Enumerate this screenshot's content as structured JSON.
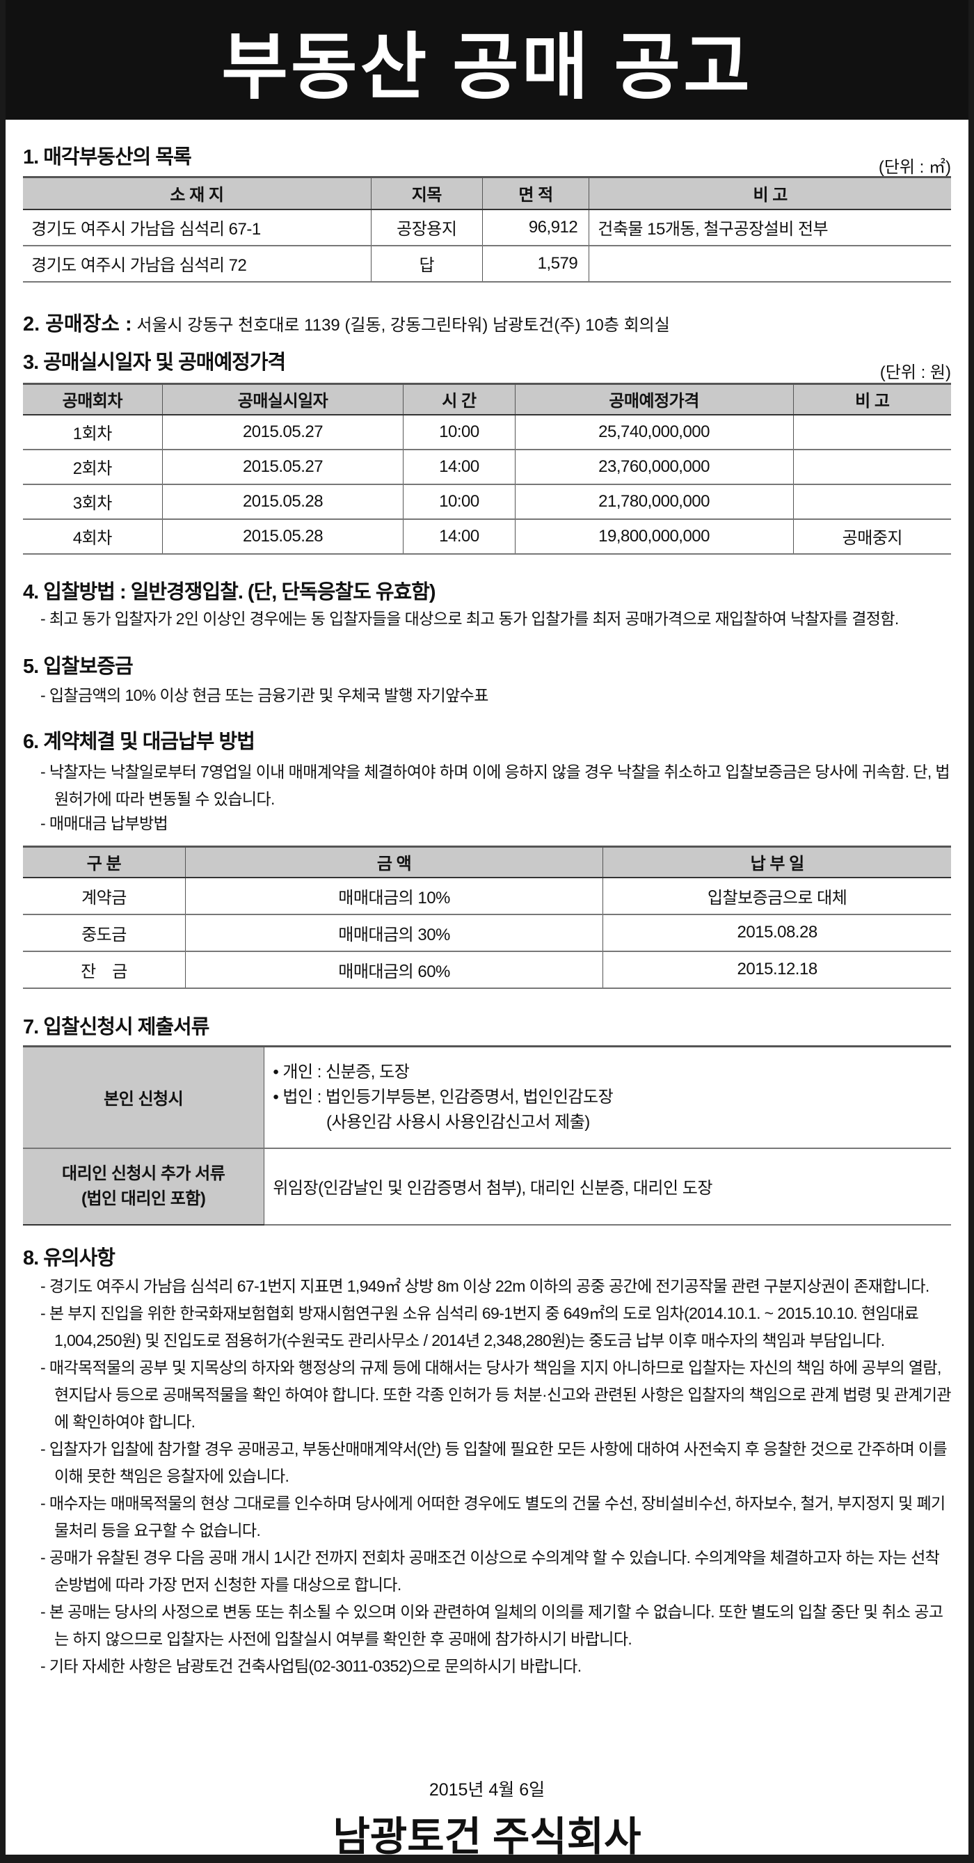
{
  "title": "부동산 공매 공고",
  "s1": {
    "heading": "1. 매각부동산의 목록",
    "unit": "(단위 : ㎡)",
    "headers": [
      "소 재 지",
      "지목",
      "면 적",
      "비 고"
    ],
    "rows": [
      [
        "경기도 여주시 가남읍 심석리 67-1",
        "공장용지",
        "96,912",
        "건축물 15개동, 철구공장설비 전부"
      ],
      [
        "경기도 여주시 가남읍 심석리 72",
        "답",
        "1,579",
        ""
      ]
    ]
  },
  "s2": {
    "label": "2. 공매장소 :",
    "value": "서울시 강동구 천호대로 1139 (길동, 강동그린타워) 남광토건(주) 10층 회의실"
  },
  "s3": {
    "heading": "3. 공매실시일자 및 공매예정가격",
    "unit": "(단위 : 원)",
    "headers": [
      "공매회차",
      "공매실시일자",
      "시 간",
      "공매예정가격",
      "비 고"
    ],
    "rows": [
      [
        "1회차",
        "2015.05.27",
        "10:00",
        "25,740,000,000",
        ""
      ],
      [
        "2회차",
        "2015.05.27",
        "14:00",
        "23,760,000,000",
        ""
      ],
      [
        "3회차",
        "2015.05.28",
        "10:00",
        "21,780,000,000",
        ""
      ],
      [
        "4회차",
        "2015.05.28",
        "14:00",
        "19,800,000,000",
        "공매중지"
      ]
    ]
  },
  "s4": {
    "heading": "4. 입찰방법 : 일반경쟁입찰. (단, 단독응찰도 유효함)",
    "items": [
      "- 최고 동가 입찰자가 2인 이상인 경우에는 동 입찰자들을 대상으로 최고 동가 입찰가를 최저 공매가격으로 재입찰하여 낙찰자를 결정함."
    ]
  },
  "s5": {
    "heading": "5. 입찰보증금",
    "items": [
      "- 입찰금액의 10% 이상 현금 또는 금융기관 및 우체국 발행 자기앞수표"
    ]
  },
  "s6": {
    "heading": "6. 계약체결 및 대금납부 방법",
    "items": [
      "- 낙찰자는 낙찰일로부터 7영업일 이내 매매계약을 체결하여야 하며 이에 응하지 않을 경우 낙찰을 취소하고 입찰보증금은 당사에 귀속함. 단, 법원허가에 따라 변동될 수 있습니다.",
      "- 매매대금 납부방법"
    ],
    "headers": [
      "구 분",
      "금 액",
      "납 부 일"
    ],
    "rows": [
      [
        "계약금",
        "매매대금의 10%",
        "입찰보증금으로 대체"
      ],
      [
        "중도금",
        "매매대금의 30%",
        "2015.08.28"
      ],
      [
        "잔　금",
        "매매대금의 60%",
        "2015.12.18"
      ]
    ]
  },
  "s7": {
    "heading": "7. 입찰신청시 제출서류",
    "r1_label": "본인 신청시",
    "r1_lines": [
      "• 개인 : 신분증, 도장",
      "• 법인 : 법인등기부등본, 인감증명서, 법인인감도장",
      "　　　 (사용인감 사용시 사용인감신고서 제출)"
    ],
    "r2_label1": "대리인 신청시 추가 서류",
    "r2_label2": "(법인 대리인 포함)",
    "r2_value": "위임장(인감날인 및 인감증명서 첨부), 대리인 신분증, 대리인 도장"
  },
  "s8": {
    "heading": "8. 유의사항",
    "items": [
      "- 경기도 여주시 가남읍 심석리 67-1번지 지표면 1,949㎡ 상방 8m 이상 22m 이하의 공중 공간에 전기공작물 관련 구분지상권이 존재합니다.",
      "- 본 부지 진입을 위한 한국화재보험협회 방재시험연구원 소유 심석리 69-1번지 중 649㎡의 도로 임차(2014.10.1. ~ 2015.10.10. 현임대료 1,004,250원) 및 진입도로 점용허가(수원국도 관리사무소 / 2014년 2,348,280원)는 중도금 납부 이후 매수자의 책임과 부담입니다.",
      "- 매각목적물의 공부 및 지목상의 하자와 행정상의 규제 등에 대해서는 당사가 책임을 지지 아니하므로 입찰자는 자신의 책임 하에 공부의 열람, 현지답사 등으로 공매목적물을 확인 하여야 합니다. 또한 각종 인허가 등 처분·신고와 관련된 사항은 입찰자의 책임으로 관계 법령 및 관계기관에 확인하여야 합니다.",
      "- 입찰자가 입찰에 참가할 경우 공매공고, 부동산매매계약서(안) 등 입찰에 필요한 모든 사항에 대하여 사전숙지 후 응찰한 것으로 간주하며 이를 이해 못한 책임은 응찰자에 있습니다.",
      "- 매수자는 매매목적물의 현상 그대로를 인수하며 당사에게 어떠한 경우에도 별도의 건물 수선, 장비설비수선, 하자보수, 철거, 부지정지 및 폐기물처리 등을 요구할 수 없습니다.",
      "- 공매가 유찰된 경우 다음 공매 개시 1시간 전까지 전회차 공매조건 이상으로 수의계약 할 수 있습니다. 수의계약을 체결하고자 하는 자는 선착순방법에 따라 가장 먼저 신청한 자를 대상으로 합니다.",
      "- 본 공매는 당사의 사정으로 변동 또는 취소될 수 있으며 이와 관련하여 일체의 이의를 제기할 수 없습니다. 또한 별도의 입찰 중단 및 취소 공고는 하지 않으므로 입찰자는 사전에 입찰실시 여부를 확인한 후 공매에 참가하시기 바랍니다.",
      "- 기타 자세한 사항은 남광토건 건축사업팀(02-3011-0352)으로 문의하시기 바랍니다."
    ]
  },
  "date": "2015년 4월 6일",
  "company": "남광토건 주식회사"
}
